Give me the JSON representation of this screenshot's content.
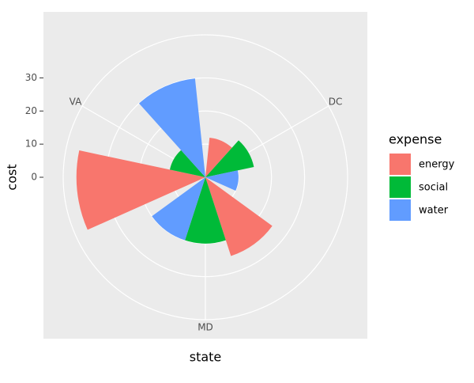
{
  "chart_data": {
    "type": "bar",
    "polar": true,
    "x_label": "state",
    "y_label": "cost",
    "categories": [
      "DC",
      "MD",
      "VA"
    ],
    "legend_title": "expense",
    "series": [
      {
        "name": "energy",
        "color": "#F8766D",
        "values": [
          12,
          25,
          39
        ]
      },
      {
        "name": "social",
        "color": "#00BA38",
        "values": [
          15,
          20,
          11
        ]
      },
      {
        "name": "water",
        "color": "#619CFF",
        "values": [
          10,
          20,
          30
        ]
      }
    ],
    "ylim": [
      0,
      43
    ],
    "yticks": [
      0,
      10,
      20,
      30
    ],
    "grid": true
  }
}
